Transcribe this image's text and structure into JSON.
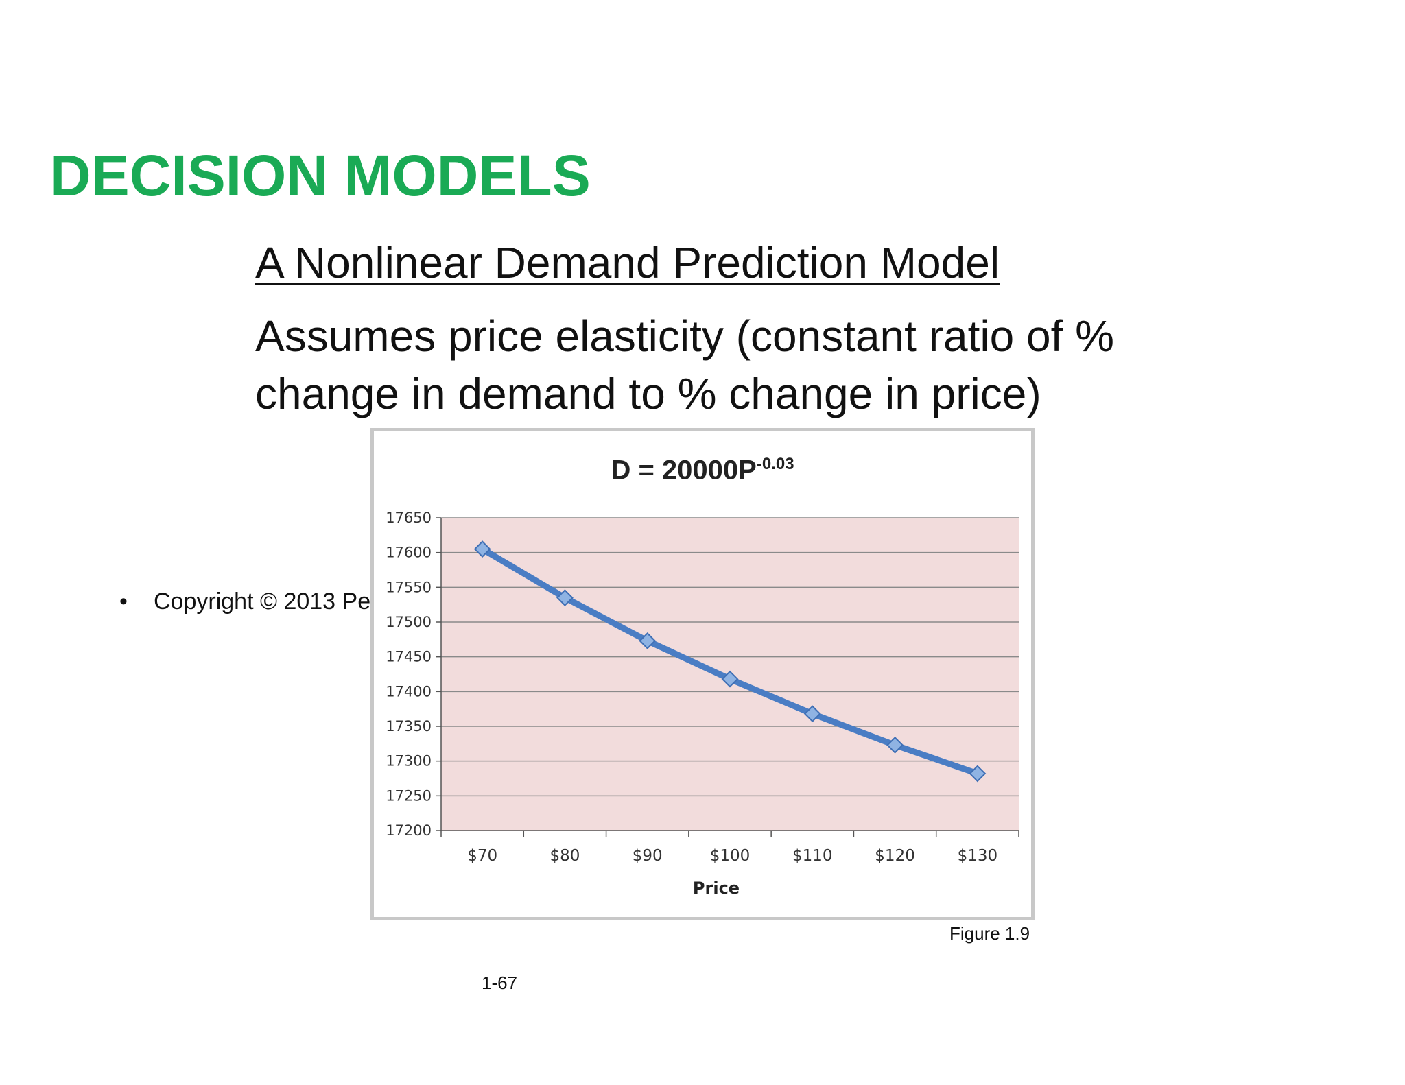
{
  "slide": {
    "title": "DECISION MODELS",
    "subtitle": "A Nonlinear Demand Prediction Model",
    "body": "Assumes price elasticity (constant ratio of % change in demand to % change in price)",
    "bullet": "Copyright © 2013 Pe",
    "figure_caption": "Figure 1.9",
    "slide_number": "1-67"
  },
  "colors": {
    "title": "#1aaa55",
    "plot_background": "#f2dcdc",
    "line": "#4a7dc4",
    "marker": "#8fb3e3"
  },
  "chart_data": {
    "type": "line",
    "title_base": "D = 20000P",
    "title_exponent": "-0.03",
    "categories": [
      "$70",
      "$80",
      "$90",
      "$100",
      "$110",
      "$120",
      "$130"
    ],
    "values": [
      17605,
      17535,
      17473,
      17418,
      17368,
      17323,
      17282
    ],
    "xlabel": "Price",
    "ylabel": "",
    "ylim": [
      17200,
      17650
    ],
    "yticks": [
      17200,
      17250,
      17300,
      17350,
      17400,
      17450,
      17500,
      17550,
      17600,
      17650
    ],
    "grid": true,
    "legend": "none"
  }
}
